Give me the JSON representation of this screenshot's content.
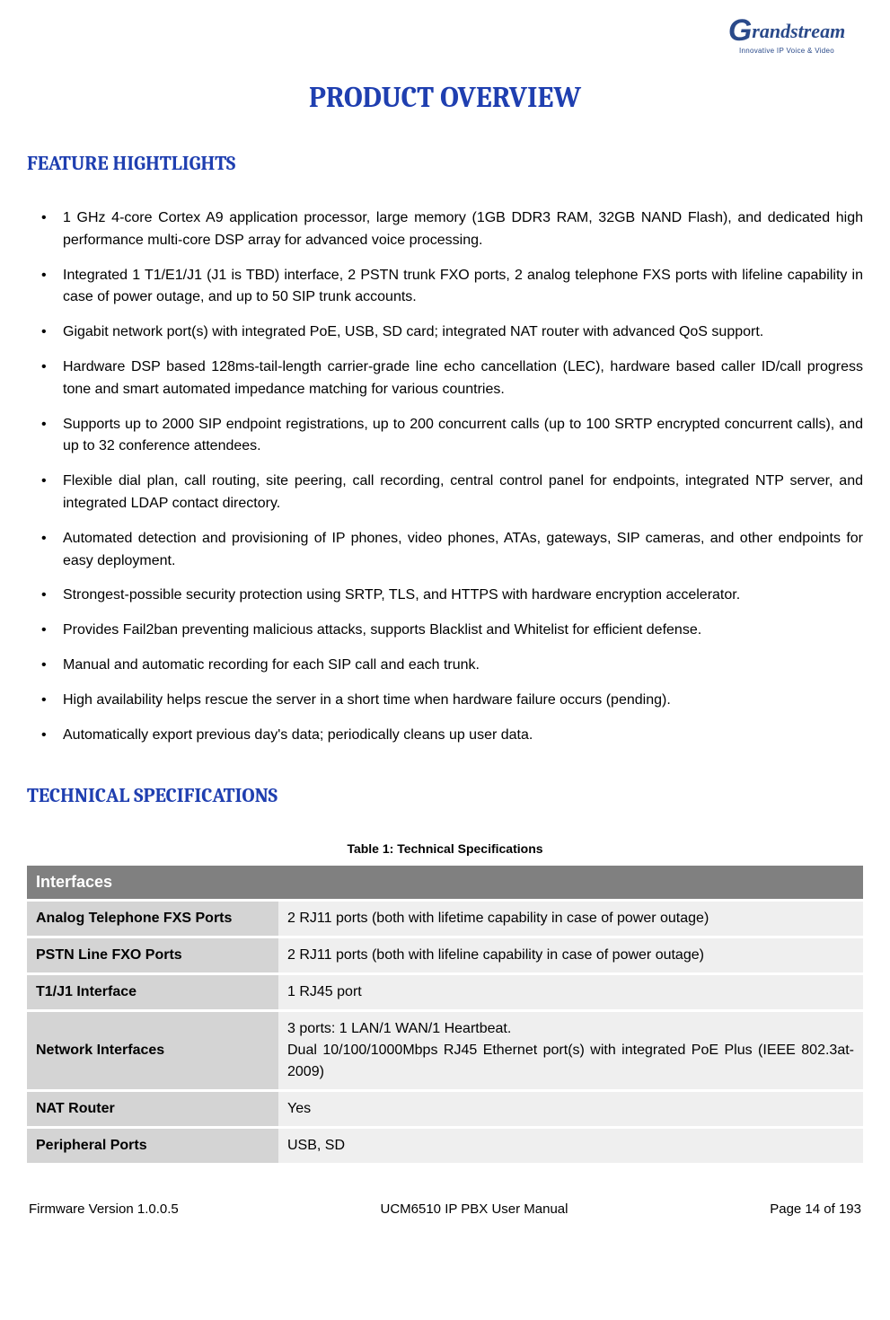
{
  "logo": {
    "brand": "randstream",
    "tagline": "Innovative IP Voice & Video"
  },
  "colors": {
    "heading": "#1f3fb0",
    "table_section_bg": "#808080",
    "table_section_fg": "#ffffff",
    "table_label_bg": "#d4d4d4",
    "table_value_bg": "#efefef",
    "body_text": "#000000",
    "background": "#ffffff"
  },
  "typography": {
    "body_font": "Arial",
    "heading_font": "Cambria",
    "main_title_size": 32,
    "section_title_size": 22,
    "body_size": 16
  },
  "main_title": "PRODUCT OVERVIEW",
  "section_features_title": "FEATURE HIGHTLIGHTS",
  "features": [
    "1 GHz 4-core Cortex A9 application processor, large memory (1GB DDR3 RAM, 32GB NAND Flash), and dedicated high performance multi-core DSP array for advanced voice processing.",
    "Integrated 1 T1/E1/J1 (J1 is TBD) interface, 2 PSTN trunk FXO ports, 2 analog telephone FXS ports with lifeline capability in case of power outage, and up to 50 SIP trunk accounts.",
    "Gigabit network port(s) with integrated PoE, USB, SD card; integrated NAT router with advanced QoS support.",
    "Hardware DSP based 128ms-tail-length carrier-grade line echo cancellation (LEC), hardware based caller ID/call progress tone and smart automated impedance matching for various countries.",
    "Supports up to 2000 SIP endpoint registrations, up to 200 concurrent calls (up to 100 SRTP encrypted concurrent calls), and up to 32 conference attendees.",
    "Flexible dial plan, call routing, site peering, call recording, central control panel for endpoints, integrated NTP server, and integrated LDAP contact directory.",
    "Automated detection and provisioning of IP phones, video phones, ATAs, gateways, SIP cameras, and other endpoints for easy deployment.",
    "Strongest-possible security protection using SRTP, TLS, and HTTPS with hardware encryption accelerator.",
    "Provides Fail2ban preventing malicious attacks, supports Blacklist and Whitelist for efficient defense.",
    "Manual and automatic recording for each SIP call and each trunk.",
    "High availability helps rescue the server in a short time when hardware failure occurs (pending).",
    "Automatically export previous day's data; periodically cleans up user data."
  ],
  "section_tech_title": "TECHNICAL SPECIFICATIONS",
  "table_caption": "Table 1: Technical Specifications",
  "table": {
    "section_header": "Interfaces",
    "rows": [
      {
        "label": "Analog Telephone FXS Ports",
        "value": "2 RJ11 ports (both with lifetime capability in case of power outage)"
      },
      {
        "label": "PSTN Line FXO Ports",
        "value": "2 RJ11 ports (both with lifeline capability in case of power outage)"
      },
      {
        "label": "T1/J1 Interface",
        "value": "1 RJ45 port"
      },
      {
        "label": "Network Interfaces",
        "value": "3 ports: 1 LAN/1 WAN/1 Heartbeat.\nDual 10/100/1000Mbps RJ45 Ethernet port(s) with integrated PoE Plus (IEEE 802.3at-2009)"
      },
      {
        "label": "NAT Router",
        "value": "Yes"
      },
      {
        "label": "Peripheral Ports",
        "value": "USB, SD"
      }
    ]
  },
  "footer": {
    "left": "Firmware Version 1.0.0.5",
    "center": "UCM6510 IP PBX User Manual",
    "right": "Page 14 of 193"
  }
}
